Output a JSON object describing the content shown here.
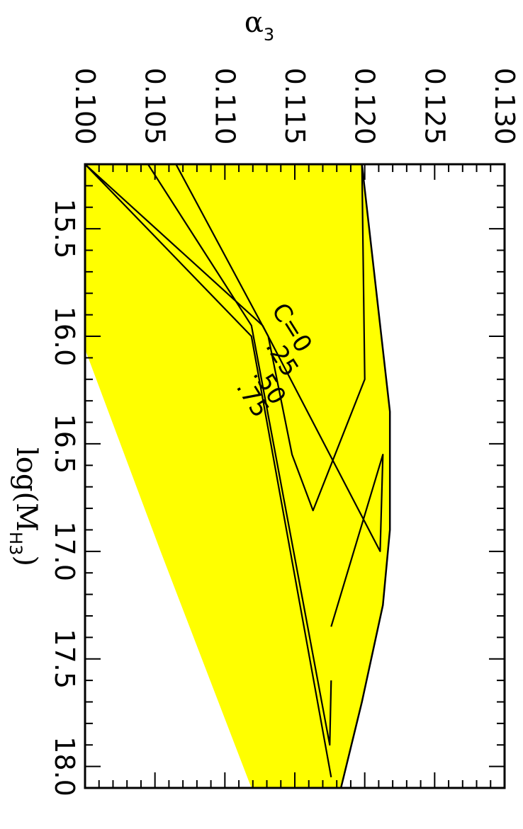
{
  "chart_data": {
    "type": "area",
    "title": "",
    "orientation": "rotated-90",
    "xaxis": {
      "label": "log(M",
      "label_sub": "H3",
      "label_close": ")",
      "range": [
        15.2,
        18.1
      ],
      "ticks": [
        "15.5",
        "16.0",
        "16.5",
        "17.0",
        "17.5",
        "18.0"
      ]
    },
    "yaxis": {
      "label": "α",
      "label_sub": "3",
      "range": [
        0.1,
        0.13
      ],
      "ticks": [
        "0.100",
        "0.105",
        "0.110",
        "0.115",
        "0.120",
        "0.125",
        "0.130"
      ]
    },
    "colors": {
      "fill": "#ffff00",
      "line": "#000000"
    },
    "allowed_region": {
      "upper": [
        {
          "x": 15.2,
          "y": 0.1198
        },
        {
          "x": 16.35,
          "y": 0.1218
        },
        {
          "x": 16.9,
          "y": 0.1218
        },
        {
          "x": 17.25,
          "y": 0.1213
        },
        {
          "x": 17.7,
          "y": 0.1198
        },
        {
          "x": 18.1,
          "y": 0.1183
        }
      ],
      "lower": [
        {
          "x": 15.2,
          "y": 0.1
        },
        {
          "x": 16.06,
          "y": 0.1
        },
        {
          "x": 17.0,
          "y": 0.1054
        },
        {
          "x": 18.1,
          "y": 0.1119
        }
      ]
    },
    "series": [
      {
        "label": "C=0",
        "values": [
          {
            "x": 15.2,
            "y": 0.1198
          },
          {
            "x": 16.2,
            "y": 0.12
          },
          {
            "x": 16.81,
            "y": 0.1163
          },
          {
            "x": 16.55,
            "y": 0.1148
          },
          {
            "x": 16.0,
            "y": 0.1131
          },
          {
            "x": 15.2,
            "y": 0.1065
          }
        ]
      },
      {
        "label": ".25",
        "values": [
          {
            "x": 17.35,
            "y": 0.1176
          },
          {
            "x": 16.55,
            "y": 0.1213
          },
          {
            "x": 17.0,
            "y": 0.1211
          },
          {
            "x": 15.95,
            "y": 0.1127
          },
          {
            "x": 15.2,
            "y": 0.1
          }
        ]
      },
      {
        "label": ".50",
        "values": [
          {
            "x": 17.6,
            "y": 0.1176
          },
          {
            "x": 17.9,
            "y": 0.1175
          },
          {
            "x": 15.95,
            "y": 0.1119
          },
          {
            "x": 15.2,
            "y": 0.1045
          }
        ]
      },
      {
        "label": ".75",
        "values": [
          {
            "x": 18.05,
            "y": 0.1176
          },
          {
            "x": 16.0,
            "y": 0.1119
          },
          {
            "x": 15.2,
            "y": 0.1
          }
        ]
      }
    ]
  }
}
